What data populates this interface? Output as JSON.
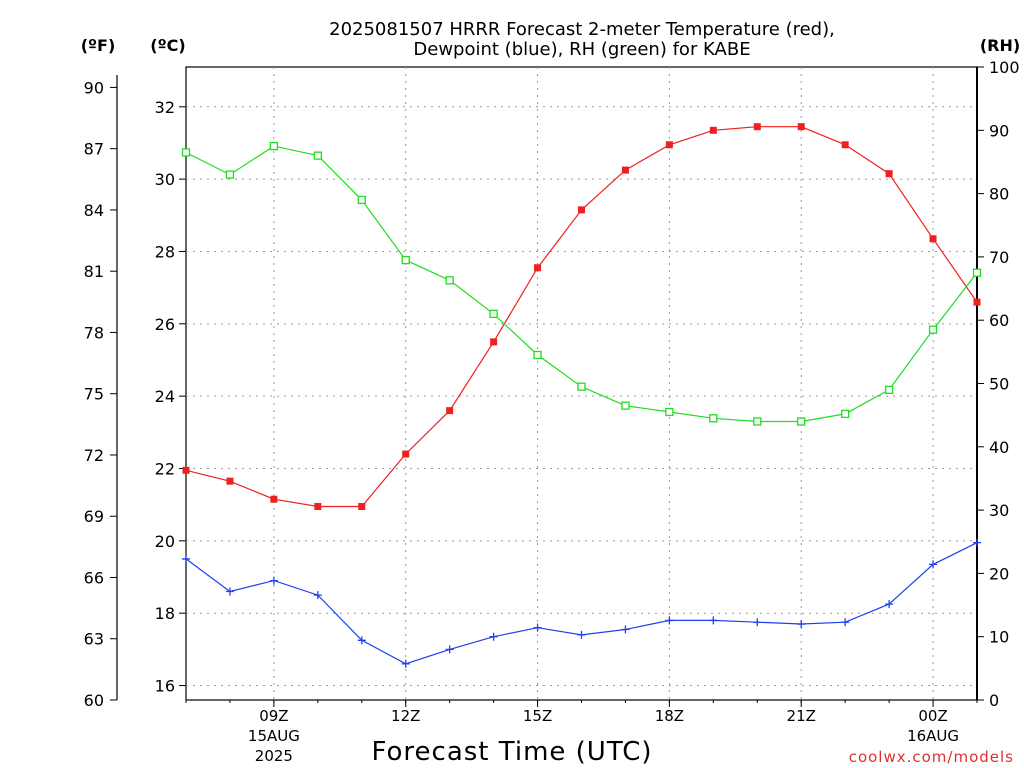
{
  "chart_data": {
    "type": "line",
    "title_line1": "2025081507 HRRR Forecast 2-meter Temperature (red),",
    "title_line2": "Dewpoint (blue), RH (green) for KABE",
    "xlabel": "Forecast Time (UTC)",
    "credit": "coolwx.com/models",
    "axis_units": {
      "f": "(ºF)",
      "c": "(ºC)",
      "rh": "(RH)"
    },
    "x_hours": [
      7,
      8,
      9,
      10,
      11,
      12,
      13,
      14,
      15,
      16,
      17,
      18,
      19,
      20,
      21,
      22,
      23,
      24,
      25
    ],
    "x_ticks": [
      {
        "hour": 9,
        "label": "09Z",
        "sub1": "15AUG",
        "sub2": "2025"
      },
      {
        "hour": 12,
        "label": "12Z",
        "sub1": "",
        "sub2": ""
      },
      {
        "hour": 15,
        "label": "15Z",
        "sub1": "",
        "sub2": ""
      },
      {
        "hour": 18,
        "label": "18Z",
        "sub1": "",
        "sub2": ""
      },
      {
        "hour": 21,
        "label": "21Z",
        "sub1": "",
        "sub2": ""
      },
      {
        "hour": 24,
        "label": "00Z",
        "sub1": "16AUG",
        "sub2": ""
      }
    ],
    "y_left_c": {
      "range": [
        15.6,
        33.1
      ],
      "ticks": [
        16,
        18,
        20,
        22,
        24,
        26,
        28,
        30,
        32
      ]
    },
    "y_left_f": {
      "range": [
        60,
        91
      ],
      "ticks": [
        60,
        63,
        66,
        69,
        72,
        75,
        78,
        81,
        84,
        87,
        90
      ]
    },
    "y_right_rh": {
      "range": [
        0,
        100
      ],
      "ticks": [
        0,
        10,
        20,
        30,
        40,
        50,
        60,
        70,
        80,
        90,
        100
      ]
    },
    "grid": true,
    "series": [
      {
        "key": "temperature",
        "axis": "c",
        "color": "#ee2020",
        "marker": "filled-square",
        "values": [
          21.95,
          21.65,
          21.15,
          20.95,
          20.95,
          22.4,
          23.6,
          25.5,
          27.55,
          29.15,
          30.25,
          30.95,
          31.35,
          31.45,
          31.45,
          30.95,
          30.15,
          28.35,
          26.6
        ]
      },
      {
        "key": "dewpoint",
        "axis": "c",
        "color": "#2040ee",
        "marker": "plus",
        "values": [
          19.5,
          18.6,
          18.9,
          18.5,
          17.25,
          16.6,
          17.0,
          17.35,
          17.6,
          17.4,
          17.55,
          17.8,
          17.8,
          17.75,
          17.7,
          17.75,
          18.25,
          19.35,
          19.95
        ]
      },
      {
        "key": "rh",
        "axis": "rh",
        "color": "#20dd20",
        "marker": "open-square",
        "values": [
          86.5,
          83.0,
          87.5,
          86.0,
          79.0,
          69.5,
          66.3,
          61.0,
          54.5,
          49.5,
          46.5,
          45.5,
          44.5,
          44.0,
          44.0,
          45.2,
          49.0,
          58.5,
          67.5
        ]
      }
    ]
  }
}
